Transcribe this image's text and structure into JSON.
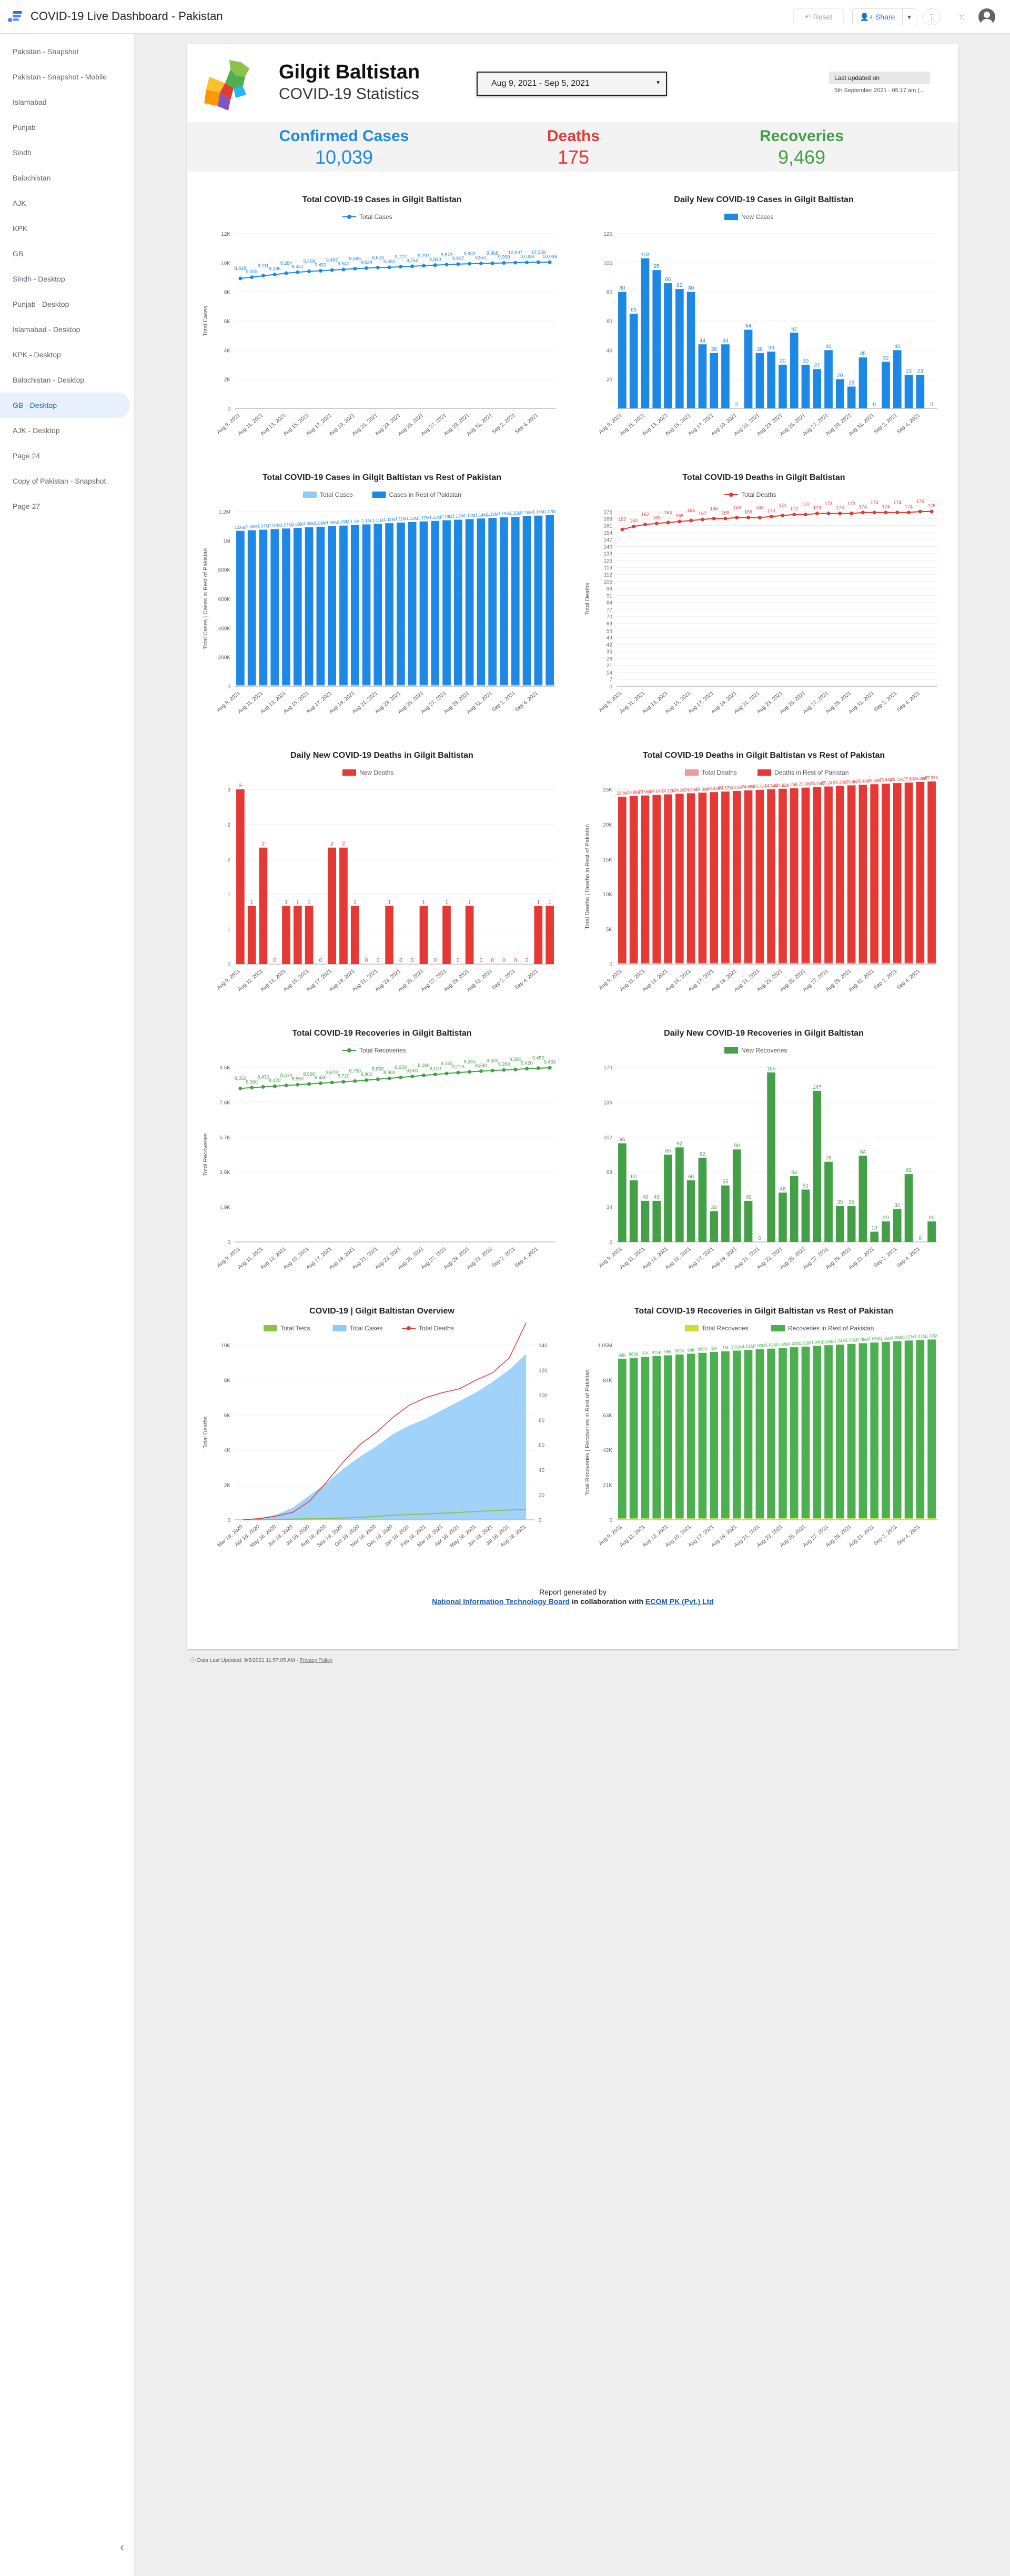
{
  "app": {
    "title": "COVID-19 Live Dashboard - Pakistan",
    "reset_label": "Reset",
    "share_label": "Share"
  },
  "sidebar": {
    "items": [
      {
        "label": "Pakistan - Snapshot",
        "active": false
      },
      {
        "label": "Pakistan - Snapshot - Mobile",
        "active": false
      },
      {
        "label": "Islamabad",
        "active": false
      },
      {
        "label": "Punjab",
        "active": false
      },
      {
        "label": "Sindh",
        "active": false
      },
      {
        "label": "Balochistan",
        "active": false
      },
      {
        "label": "AJK",
        "active": false
      },
      {
        "label": "KPK",
        "active": false
      },
      {
        "label": "GB",
        "active": false
      },
      {
        "label": "Sindh - Desktop",
        "active": false
      },
      {
        "label": "Punjab - Desktop",
        "active": false
      },
      {
        "label": "Islamabad - Desktop",
        "active": false
      },
      {
        "label": "KPK - Desktop",
        "active": false
      },
      {
        "label": "Balochistan - Desktop",
        "active": false
      },
      {
        "label": "GB - Desktop",
        "active": true
      },
      {
        "label": "AJK - Desktop",
        "active": false
      },
      {
        "label": "Page 24",
        "active": false
      },
      {
        "label": "Copy of Pakistan - Snapshot",
        "active": false
      },
      {
        "label": "Page 27",
        "active": false
      }
    ]
  },
  "report": {
    "title": "Gilgit Baltistan",
    "subtitle": "COVID-19 Statistics",
    "date_range": "Aug 9, 2021 - Sep 5, 2021",
    "updated_label": "Last updated on",
    "updated_value": "5th September 2021 - 05:17 am (...",
    "kpis": [
      {
        "label": "Confirmed Cases",
        "value": "10,039",
        "color": "#1e88e5"
      },
      {
        "label": "Deaths",
        "value": "175",
        "color": "#e53935"
      },
      {
        "label": "Recoveries",
        "value": "9,469",
        "color": "#43a047"
      }
    ],
    "credit_line1": "Report generated by",
    "credit_link1": "National Information Technology Board",
    "credit_mid": " in collaboration with ",
    "credit_link2": "ECOM PK (Pvt.) Ltd"
  },
  "footer": {
    "updated": "Data Last Updated: 9/5/2021 11:57:05 AM",
    "privacy": "Privacy Policy"
  },
  "dates": [
    "Aug 9, 2021",
    "Aug 10, 2021",
    "Aug 11, 2021",
    "Aug 12, 2021",
    "Aug 13, 2021",
    "Aug 14, 2021",
    "Aug 15, 2021",
    "Aug 16, 2021",
    "Aug 17, 2021",
    "Aug 18, 2021",
    "Aug 19, 2021",
    "Aug 20, 2021",
    "Aug 21, 2021",
    "Aug 22, 2021",
    "Aug 23, 2021",
    "Aug 24, 2021",
    "Aug 25, 2021",
    "Aug 26, 2021",
    "Aug 27, 2021",
    "Aug 28, 2021",
    "Aug 29, 2021",
    "Aug 30, 2021",
    "Aug 31, 2021",
    "Sep 1, 2021",
    "Sep 2, 2021",
    "Sep 3, 2021",
    "Sep 4, 2021",
    "Sep 5, 2021"
  ],
  "chart_data": [
    {
      "type": "line",
      "title": "Total COVID-19 Cases in Gilgit Baltistan",
      "ylabel": "Total Cases",
      "ylim": [
        0,
        12000
      ],
      "yticks": [
        "0",
        "2K",
        "4K",
        "6K",
        "8K",
        "10K",
        "12K"
      ],
      "series": [
        {
          "name": "Total Cases",
          "color": "#1e88e5",
          "values": [
            8928,
            9008,
            9111,
            9196,
            9284,
            9351,
            9409,
            9453,
            9497,
            9541,
            9595,
            9634,
            9673,
            9692,
            9727,
            9762,
            9797,
            9840,
            9873,
            9907,
            9933,
            9951,
            9968,
            9990,
            10007,
            10023,
            10039,
            10039
          ]
        }
      ]
    },
    {
      "type": "bar",
      "title": "Daily New COVID-19 Cases in Gilgit Baltistan",
      "ylabel": "",
      "ylim": [
        0,
        120
      ],
      "yticks": [
        "20",
        "40",
        "60",
        "80",
        "100",
        "120"
      ],
      "series": [
        {
          "name": "New Cases",
          "color": "#1e88e5",
          "values": [
            80,
            65,
            103,
            95,
            86,
            82,
            80,
            44,
            38,
            44,
            0,
            54,
            38,
            39,
            30,
            52,
            30,
            27,
            40,
            20,
            15,
            35,
            0,
            32,
            40,
            23,
            23,
            0
          ]
        }
      ]
    },
    {
      "type": "bar",
      "title": "Total COVID-19 Cases in Gilgit Baltistan vs Rest of Pakistan",
      "ylabel": "Total Cases | Cases in Rest of Pakistan",
      "ylim": [
        0,
        1200000
      ],
      "yticks": [
        "0",
        "200K",
        "400K",
        "600K",
        "800K",
        "1M",
        "1.2M"
      ],
      "series": [
        {
          "name": "Total Cases",
          "color": "#90caf9",
          "values": [
            8928,
            9008,
            9111,
            9196,
            9284,
            9351,
            9409,
            9453,
            9497,
            9541,
            9595,
            9634,
            9673,
            9692,
            9727,
            9762,
            9797,
            9840,
            9873,
            9907,
            9933,
            9951,
            9968,
            9990,
            10007,
            10023,
            10039,
            10039
          ]
        },
        {
          "name": "Cases in Rest of Pakistan",
          "color": "#1e88e5",
          "values": [
            1058000,
            1062000,
            1066000,
            1070000,
            1074000,
            1078000,
            1082000,
            1086000,
            1090000,
            1094000,
            1098000,
            1102000,
            1106000,
            1110000,
            1114000,
            1118000,
            1122000,
            1126000,
            1130000,
            1134000,
            1138000,
            1142000,
            1146000,
            1150000,
            1154000,
            1158000,
            1162000,
            1165000
          ]
        }
      ]
    },
    {
      "type": "line",
      "title": "Total COVID-19 Deaths in Gilgit Baltistan",
      "ylabel": "Total Deaths",
      "ylim": [
        0,
        175
      ],
      "yticks": [
        "0",
        "7",
        "14",
        "21",
        "28",
        "35",
        "42",
        "49",
        "56",
        "63",
        "70",
        "77",
        "84",
        "91",
        "98",
        "105",
        "112",
        "119",
        "126",
        "133",
        "140",
        "147",
        "154",
        "161",
        "168",
        "175"
      ],
      "series": [
        {
          "name": "Total Deaths",
          "color": "#e53935",
          "values": [
            157,
            160,
            162,
            163,
            164,
            165,
            166,
            167,
            168,
            168,
            169,
            169,
            169,
            170,
            171,
            172,
            172,
            173,
            173,
            173,
            173,
            174,
            174,
            174,
            174,
            174,
            175,
            175
          ]
        }
      ]
    },
    {
      "type": "bar",
      "title": "Daily New COVID-19 Deaths in Gilgit Baltistan",
      "ylabel": "",
      "ylim": [
        0,
        3
      ],
      "series": [
        {
          "name": "New Deaths",
          "color": "#e53935",
          "values": [
            3,
            1,
            2,
            0,
            1,
            1,
            1,
            0,
            2,
            2,
            1,
            0,
            0,
            1,
            0,
            0,
            1,
            0,
            1,
            0,
            1,
            0,
            0,
            0,
            0,
            0,
            1,
            1
          ]
        }
      ]
    },
    {
      "type": "bar",
      "title": "Total COVID-19 Deaths in Gilgit Baltistan vs Rest of Pakistan",
      "ylabel": "Total Deaths | Deaths in Rest of Pakistan",
      "ylim": [
        0,
        25000
      ],
      "series": [
        {
          "name": "Total Deaths",
          "color": "#ef9a9a",
          "values": [
            157,
            160,
            162,
            163,
            164,
            165,
            166,
            167,
            168,
            168,
            169,
            169,
            169,
            170,
            171,
            172,
            172,
            173,
            173,
            173,
            173,
            174,
            174,
            174,
            174,
            174,
            175,
            175
          ]
        },
        {
          "name": "Deaths in Rest of Pakistan",
          "color": "#e53935",
          "values": [
            23800,
            23880,
            23960,
            24040,
            24120,
            24200,
            24280,
            24360,
            24440,
            24520,
            24600,
            24680,
            24760,
            24840,
            24920,
            25000,
            25080,
            25160,
            25240,
            25320,
            25400,
            25480,
            25560,
            25640,
            25720,
            25800,
            25880,
            25960
          ]
        }
      ]
    },
    {
      "type": "line",
      "title": "Total COVID-19 Recoveries in Gilgit Baltistan",
      "ylabel": "Total Recoveries",
      "ylim": [
        0,
        9500
      ],
      "series": [
        {
          "name": "Total Recoveries",
          "color": "#43a047",
          "values": [
            8350,
            8390,
            8430,
            8470,
            8510,
            8550,
            8590,
            8630,
            8670,
            8710,
            8750,
            8800,
            8850,
            8900,
            8950,
            9000,
            9060,
            9110,
            9160,
            9210,
            9250,
            9290,
            9320,
            9350,
            9380,
            9420,
            9450,
            9469
          ]
        }
      ]
    },
    {
      "type": "bar",
      "title": "Daily New COVID-19 Recoveries in Gilgit Baltistan",
      "ylabel": "",
      "ylim": [
        0,
        170
      ],
      "series": [
        {
          "name": "New Recoveries",
          "color": "#43a047",
          "values": [
            96,
            60,
            40,
            40,
            85,
            92,
            60,
            82,
            30,
            55,
            90,
            40,
            0,
            165,
            48,
            64,
            51,
            147,
            78,
            35,
            35,
            84,
            10,
            20,
            32,
            66,
            0,
            20
          ]
        }
      ]
    },
    {
      "type": "area",
      "title": "COVID-19  |  Gilgit Baltistan Overview",
      "xlabel": "",
      "ylabel": "Total Deaths",
      "ylim": [
        0,
        10000
      ],
      "y2lim": [
        0,
        140
      ],
      "xticks": [
        "Mar 18, 2020",
        "Apr 18, 2020",
        "May 18, 2020",
        "Jun 18, 2020",
        "Jul 18, 2020",
        "Aug 18, 2020",
        "Sep 18, 2020",
        "Oct 18, 2020",
        "Nov 18, 2020",
        "Dec 18, 2020",
        "Jan 18, 2021",
        "Feb 18, 2021",
        "Mar 18, 2021",
        "Apr 18, 2021",
        "May 18, 2021",
        "Jun 18, 2021",
        "Jul 18, 2021",
        "Aug 18, 2021"
      ],
      "series": [
        {
          "name": "Total Tests",
          "color": "#8bc34a",
          "values": [
            5,
            10,
            20,
            40,
            60,
            80,
            100,
            140,
            200,
            260,
            300,
            340,
            380,
            420,
            480,
            520,
            560,
            600
          ]
        },
        {
          "name": "Total Cases",
          "color": "#90caf9",
          "values": [
            20,
            100,
            300,
            700,
            1400,
            2100,
            2900,
            3600,
            4200,
            4900,
            5400,
            5800,
            6300,
            6800,
            7300,
            7900,
            8600,
            9500
          ]
        },
        {
          "name": "Total Deaths",
          "color": "#e53935",
          "values": [
            0,
            1,
            3,
            6,
            15,
            30,
            46,
            60,
            70,
            82,
            92,
            98,
            102,
            105,
            112,
            118,
            130,
            158
          ]
        }
      ]
    },
    {
      "type": "bar",
      "title": "Total COVID-19 Recoveries in Gilgit Baltistan vs Rest of Pakistan",
      "ylabel": "Total Recoveries | Recoveries in Rest of Pakistan",
      "ylim": [
        0,
        1050000
      ],
      "series": [
        {
          "name": "Total Recoveries",
          "color": "#cddc39",
          "values": [
            8350,
            8390,
            8430,
            8470,
            8510,
            8550,
            8590,
            8630,
            8670,
            8710,
            8750,
            8800,
            8850,
            8900,
            8950,
            9000,
            9060,
            9110,
            9160,
            9210,
            9250,
            9290,
            9320,
            9350,
            9380,
            9420,
            9450,
            9469
          ]
        },
        {
          "name": "Recoveries in Rest of Pakistan",
          "color": "#4caf50",
          "values": [
            960000,
            965000,
            970000,
            975000,
            980000,
            985000,
            990000,
            995000,
            1000000,
            1004000,
            1008000,
            1012000,
            1016000,
            1020000,
            1024000,
            1028000,
            1032000,
            1036000,
            1040000,
            1044000,
            1048000,
            1052000,
            1056000,
            1060000,
            1064000,
            1068000,
            1071000,
            1074000
          ]
        }
      ]
    }
  ]
}
